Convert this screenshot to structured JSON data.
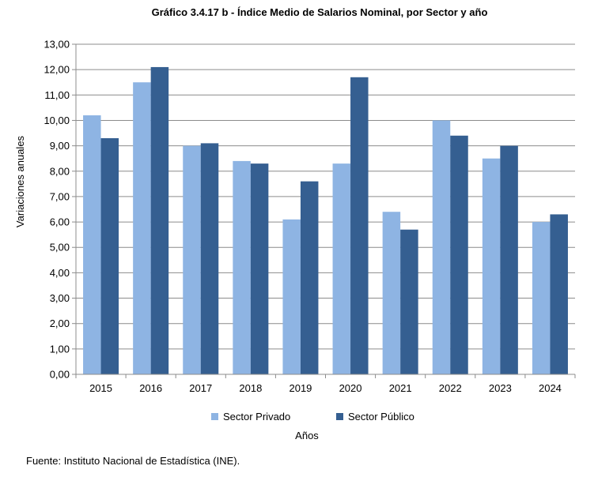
{
  "chart_data": {
    "type": "bar",
    "title": "Gráfico 3.4.17 b - Índice Medio de Salarios Nominal,  por Sector y año",
    "xlabel": "Años",
    "ylabel": "Variaciones  anuales",
    "ylim": [
      0,
      13
    ],
    "ytick_step": 1,
    "ytick_labels": [
      "0,00",
      "1,00",
      "2,00",
      "3,00",
      "4,00",
      "5,00",
      "6,00",
      "7,00",
      "8,00",
      "9,00",
      "10,00",
      "11,00",
      "12,00",
      "13,00"
    ],
    "grid": true,
    "legend_position": "bottom",
    "categories": [
      "2015",
      "2016",
      "2017",
      "2018",
      "2019",
      "2020",
      "2021",
      "2022",
      "2023",
      "2024"
    ],
    "series": [
      {
        "name": "Sector Privado",
        "color": "#8EB4E3",
        "values": [
          10.2,
          11.5,
          9.0,
          8.4,
          6.1,
          8.3,
          6.4,
          10.0,
          8.5,
          6.0
        ]
      },
      {
        "name": "Sector Público",
        "color": "#355F91",
        "values": [
          9.3,
          12.1,
          9.1,
          8.3,
          7.6,
          11.7,
          5.7,
          9.4,
          9.0,
          6.3
        ]
      }
    ]
  },
  "footer": {
    "source": "Fuente: Instituto Nacional de Estadística (INE)."
  }
}
